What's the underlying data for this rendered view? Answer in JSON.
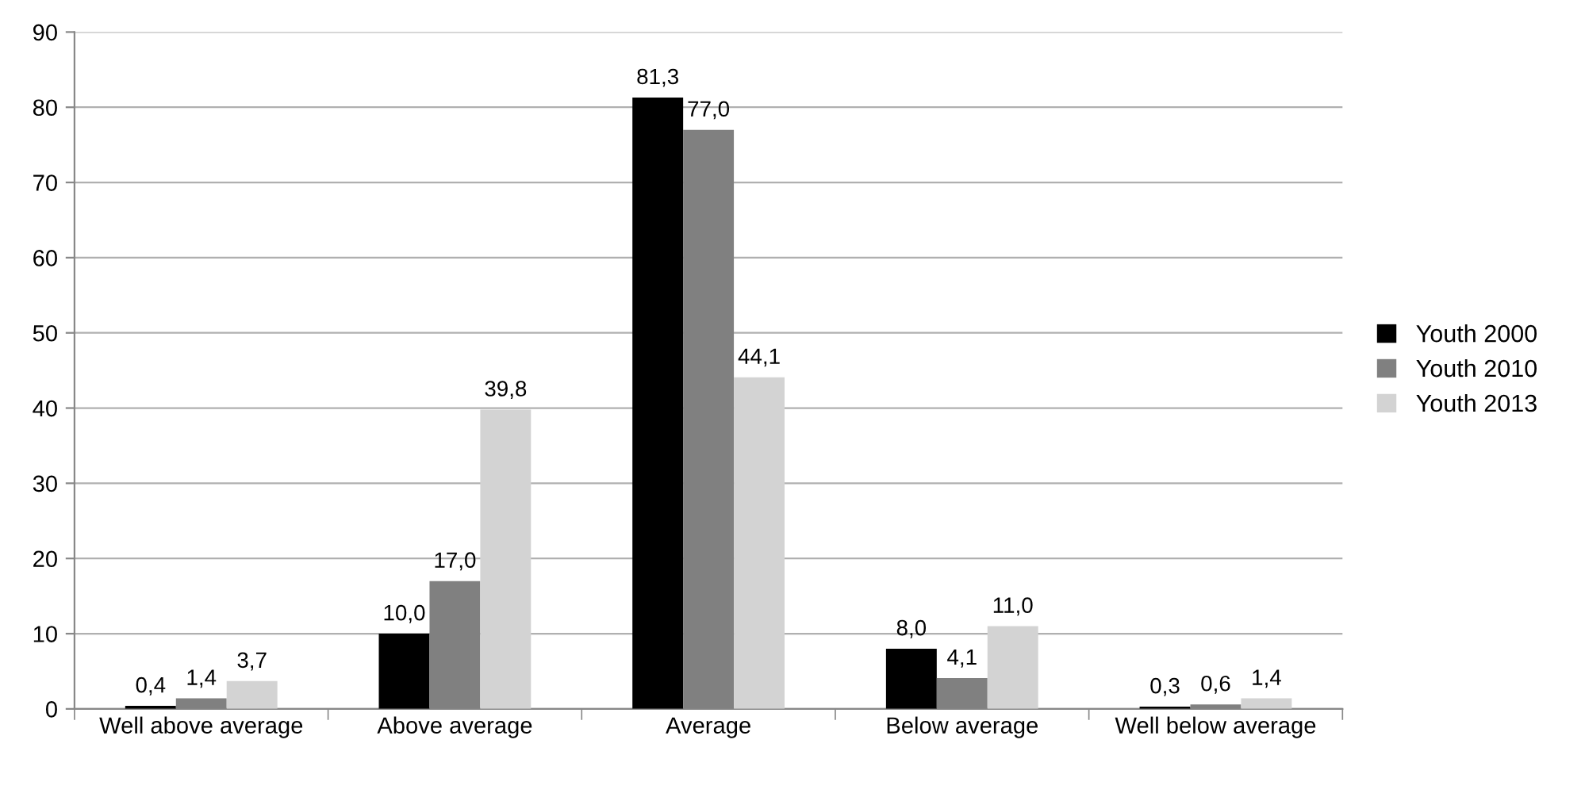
{
  "chart_data": {
    "type": "bar",
    "categories": [
      "Well above average",
      "Above average",
      "Average",
      "Below average",
      "Well below average"
    ],
    "series": [
      {
        "name": "Youth 2000",
        "color": "#000000",
        "values": [
          0.4,
          10.0,
          81.3,
          8.0,
          0.3
        ],
        "value_labels": [
          "0,4",
          "10,0",
          "81,3",
          "8,0",
          "0,3"
        ]
      },
      {
        "name": "Youth 2010",
        "color": "#808080",
        "values": [
          1.4,
          17.0,
          77.0,
          4.1,
          0.6
        ],
        "value_labels": [
          "1,4",
          "17,0",
          "77,0",
          "4,1",
          "0,6"
        ]
      },
      {
        "name": "Youth 2013",
        "color": "#d3d3d3",
        "values": [
          3.7,
          39.8,
          44.1,
          11.0,
          1.4
        ],
        "value_labels": [
          "3,7",
          "39,8",
          "44,1",
          "11,0",
          "1,4"
        ]
      }
    ],
    "ylim": [
      0,
      90
    ],
    "yticks": [
      0,
      10,
      20,
      30,
      40,
      50,
      60,
      70,
      80,
      90
    ],
    "grid": "y",
    "legend": "right"
  }
}
